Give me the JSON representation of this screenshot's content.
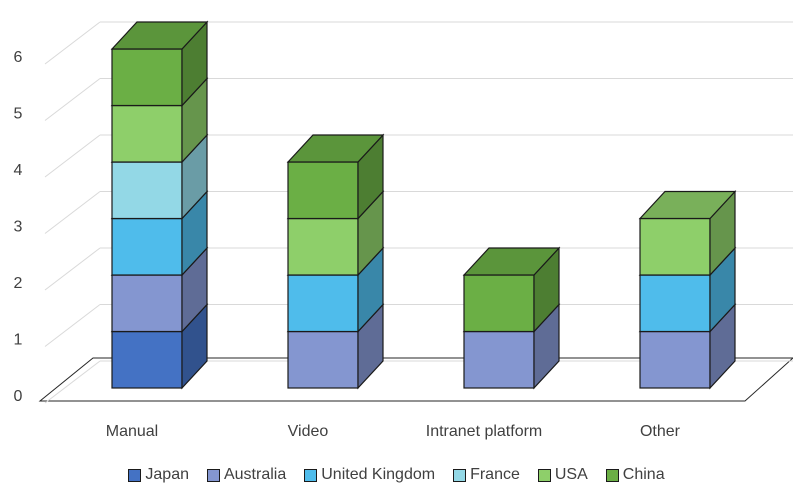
{
  "chart_data": {
    "type": "bar",
    "stacked": true,
    "three_d": true,
    "categories": [
      "Manual",
      "Video",
      "Intranet platform",
      "Other"
    ],
    "series": [
      {
        "name": "Japan",
        "values": [
          1,
          0,
          0,
          0
        ],
        "color": "#4472C4"
      },
      {
        "name": "Australia",
        "values": [
          1,
          1,
          1,
          1
        ],
        "color": "#8496D0"
      },
      {
        "name": "United Kingdom",
        "values": [
          1,
          1,
          0,
          1
        ],
        "color": "#4FBCEB"
      },
      {
        "name": "France",
        "values": [
          1,
          0,
          0,
          0
        ],
        "color": "#93D8E6"
      },
      {
        "name": "USA",
        "values": [
          1,
          1,
          0,
          1
        ],
        "color": "#8ECF6A"
      },
      {
        "name": "China",
        "values": [
          1,
          1,
          1,
          0
        ],
        "color": "#6BAF45"
      }
    ],
    "ylim": [
      0,
      6
    ],
    "yticks": [
      "0",
      "1",
      "2",
      "3",
      "4",
      "5",
      "6"
    ],
    "grid": true,
    "legend": "bottom",
    "title": "",
    "xlabel": "",
    "ylabel": ""
  }
}
